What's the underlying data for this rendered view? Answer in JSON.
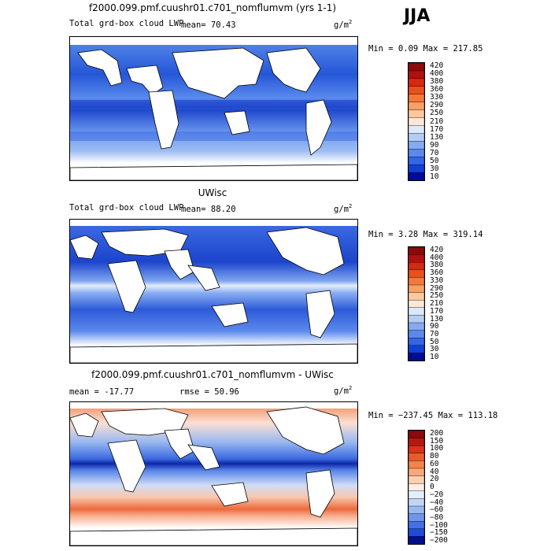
{
  "season": "JJA",
  "panels": [
    {
      "title": "f2000.099.pmf.cuushr01.c701_nomflumvm (yrs 1-1)",
      "left_label": "Total grd-box cloud LWP",
      "mean_label": "mean=  70.43",
      "units_base": "g/m",
      "units_exp": "2",
      "minmax": "Min =   0.09 Max = 217.85",
      "colorbar": [
        "420",
        "400",
        "380",
        "360",
        "330",
        "290",
        "250",
        "210",
        "170",
        "130",
        "90",
        "70",
        "50",
        "30",
        "10"
      ],
      "colorbar_colors": [
        "#8b0a0a",
        "#b01010",
        "#d42a10",
        "#e8501c",
        "#f57838",
        "#f9a064",
        "#fcc8a0",
        "#fde8d8",
        "#dde8f8",
        "#b4cdf0",
        "#86aaf0",
        "#5c88ec",
        "#3266e6",
        "#1040d8",
        "#000c96"
      ]
    },
    {
      "title": "UWisc",
      "left_label": "Total grd-box cloud LWP",
      "mean_label": "mean=  88.20",
      "units_base": "g/m",
      "units_exp": "2",
      "minmax": "Min =   3.28 Max = 319.14",
      "colorbar": [
        "420",
        "400",
        "380",
        "360",
        "330",
        "290",
        "250",
        "210",
        "170",
        "130",
        "90",
        "70",
        "50",
        "30",
        "10"
      ],
      "colorbar_colors": [
        "#8b0a0a",
        "#b01010",
        "#d42a10",
        "#e8501c",
        "#f57838",
        "#f9a064",
        "#fcc8a0",
        "#fde8d8",
        "#dde8f8",
        "#b4cdf0",
        "#86aaf0",
        "#5c88ec",
        "#3266e6",
        "#1040d8",
        "#000c96"
      ]
    },
    {
      "title": "f2000.099.pmf.cuushr01.c701_nomflumvm - UWisc",
      "left_label": "mean = -17.77",
      "mean_label": "rmse =  50.96",
      "units_base": "g/m",
      "units_exp": "2",
      "minmax": "Min = −237.45 Max = 113.18",
      "colorbar": [
        "200",
        "150",
        "100",
        "80",
        "60",
        "40",
        "20",
        "0",
        "−20",
        "−40",
        "−60",
        "−80",
        "−100",
        "−150",
        "−200"
      ],
      "colorbar_colors": [
        "#8b0a0a",
        "#b81612",
        "#d83418",
        "#ea5a2a",
        "#f4824c",
        "#f9a878",
        "#fcd0b0",
        "#fdeee4",
        "#e4eefc",
        "#c0d6f4",
        "#98b8f0",
        "#6e96ec",
        "#4472e4",
        "#1e4cd8",
        "#00108e"
      ]
    }
  ]
}
